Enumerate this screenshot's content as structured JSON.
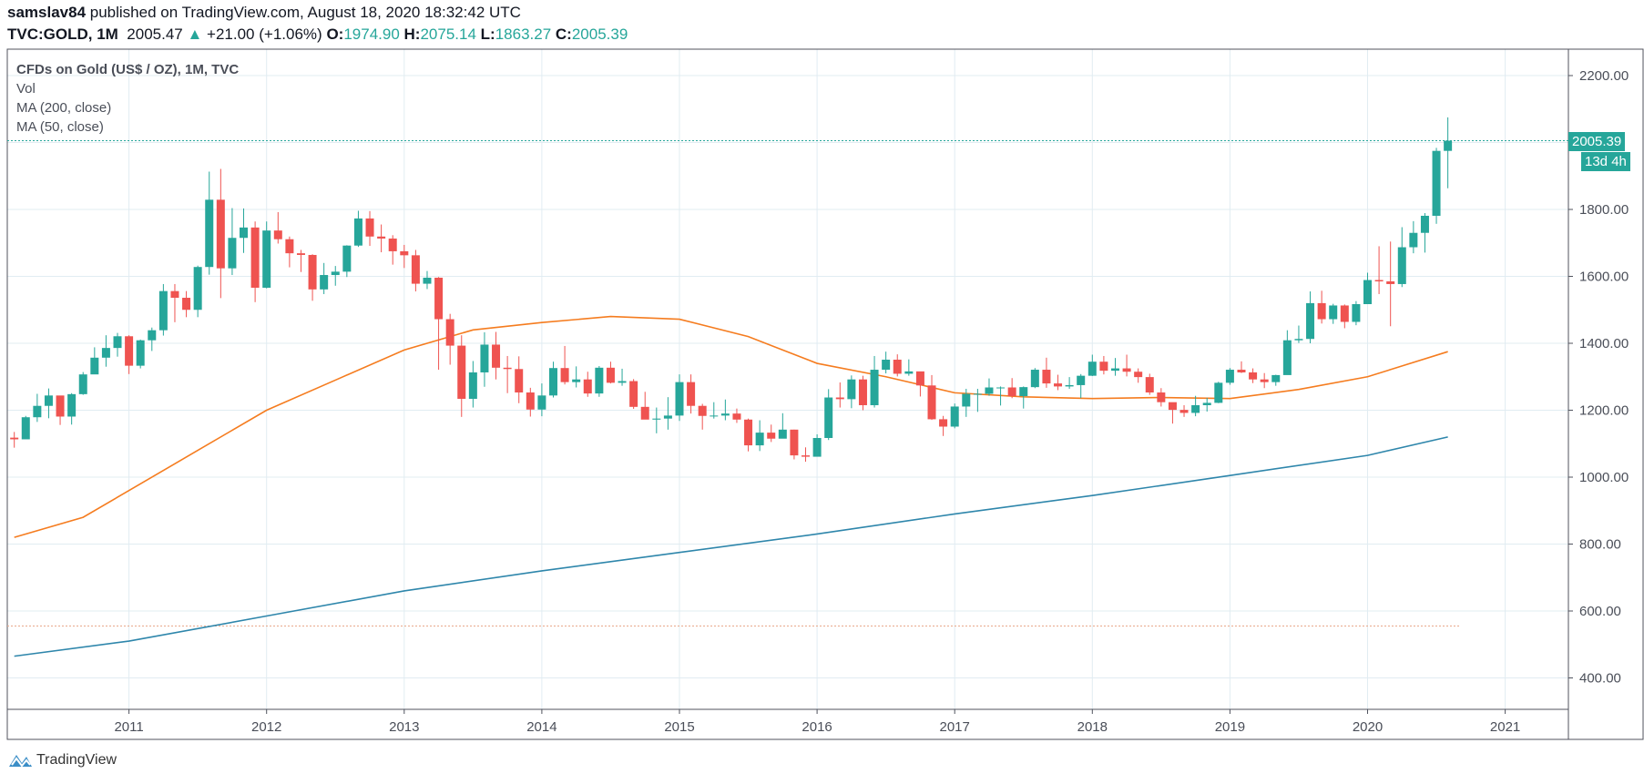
{
  "header": {
    "author": "samslav84",
    "published": "published on TradingView.com, August 18, 2020 18:32:42 UTC",
    "symbol": "TVC:GOLD, 1M",
    "last": "2005.47",
    "change": "+21.00 (+1.06%)",
    "o_label": "O:",
    "o": "1974.90",
    "h_label": "H:",
    "h": "2075.14",
    "l_label": "L:",
    "l": "1863.27",
    "c_label": "C:",
    "c": "2005.39"
  },
  "legend": {
    "title": "CFDs on Gold (US$ / OZ), 1M, TVC",
    "vol": "Vol",
    "ma200": "MA (200, close)",
    "ma50": "MA (50, close)"
  },
  "price_badge": "2005.39",
  "countdown_badge": "13d 4h",
  "logo_text": "TradingView",
  "colors": {
    "up": "#26a69a",
    "down": "#ef5350",
    "ma50": "#f57c1f",
    "ma200": "#2e86ab",
    "grid": "#e1ecf2"
  },
  "chart_data": {
    "type": "candlestick",
    "interval": "1M",
    "start": "2010-03",
    "ylim": [
      300,
      2300
    ],
    "yticks": [
      "400.00",
      "600.00",
      "800.00",
      "1000.00",
      "1200.00",
      "1400.00",
      "1600.00",
      "1800.00",
      "2200.00"
    ],
    "xticks": [
      "2011",
      "2012",
      "2013",
      "2014",
      "2015",
      "2016",
      "2017",
      "2018",
      "2019",
      "2020",
      "2021"
    ],
    "grid": true,
    "first_open": 1118,
    "close": [
      1113,
      1179,
      1213,
      1244,
      1181,
      1248,
      1307,
      1357,
      1386,
      1421,
      1333,
      1409,
      1439,
      1556,
      1536,
      1500,
      1628,
      1829,
      1624,
      1715,
      1746,
      1566,
      1737,
      1711,
      1669,
      1664,
      1561,
      1604,
      1614,
      1692,
      1773,
      1719,
      1713,
      1675,
      1663,
      1578,
      1596,
      1472,
      1393,
      1234,
      1313,
      1396,
      1327,
      1323,
      1253,
      1202,
      1244,
      1326,
      1284,
      1292,
      1250,
      1327,
      1282,
      1287,
      1210,
      1172,
      1175,
      1184,
      1284,
      1213,
      1183,
      1184,
      1190,
      1172,
      1095,
      1133,
      1115,
      1142,
      1065,
      1061,
      1117,
      1238,
      1233,
      1292,
      1215,
      1321,
      1351,
      1309,
      1316,
      1274,
      1173,
      1151,
      1211,
      1249,
      1249,
      1268,
      1268,
      1242,
      1269,
      1321,
      1280,
      1271,
      1275,
      1303,
      1345,
      1318,
      1325,
      1315,
      1299,
      1253,
      1224,
      1201,
      1192,
      1215,
      1222,
      1282,
      1321,
      1313,
      1292,
      1284,
      1305,
      1409,
      1413,
      1520,
      1472,
      1513,
      1464,
      1517,
      1589,
      1585,
      1577,
      1687,
      1730,
      1781,
      1975,
      2005.39
    ],
    "high": [
      1135,
      1183,
      1249,
      1265,
      1213,
      1251,
      1314,
      1388,
      1424,
      1431,
      1424,
      1411,
      1447,
      1577,
      1577,
      1556,
      1632,
      1913,
      1921,
      1804,
      1803,
      1764,
      1764,
      1792,
      1719,
      1679,
      1666,
      1640,
      1631,
      1693,
      1796,
      1795,
      1755,
      1723,
      1694,
      1679,
      1616,
      1598,
      1488,
      1424,
      1347,
      1433,
      1434,
      1362,
      1361,
      1267,
      1280,
      1345,
      1392,
      1331,
      1315,
      1332,
      1345,
      1324,
      1293,
      1255,
      1208,
      1239,
      1307,
      1307,
      1219,
      1224,
      1232,
      1205,
      1175,
      1170,
      1157,
      1191,
      1142,
      1089,
      1128,
      1263,
      1283,
      1304,
      1303,
      1362,
      1375,
      1367,
      1352,
      1310,
      1305,
      1183,
      1220,
      1264,
      1264,
      1295,
      1271,
      1296,
      1271,
      1326,
      1357,
      1306,
      1299,
      1308,
      1366,
      1362,
      1356,
      1366,
      1325,
      1309,
      1266,
      1218,
      1215,
      1243,
      1237,
      1285,
      1326,
      1346,
      1325,
      1311,
      1306,
      1439,
      1453,
      1555,
      1557,
      1518,
      1516,
      1526,
      1611,
      1690,
      1704,
      1747,
      1765,
      1789,
      1984,
      2075.14
    ],
    "low": [
      1088,
      1114,
      1165,
      1176,
      1156,
      1157,
      1246,
      1316,
      1330,
      1360,
      1308,
      1325,
      1377,
      1423,
      1463,
      1478,
      1478,
      1605,
      1535,
      1604,
      1670,
      1523,
      1564,
      1698,
      1627,
      1613,
      1527,
      1547,
      1572,
      1598,
      1688,
      1691,
      1672,
      1635,
      1625,
      1555,
      1562,
      1321,
      1336,
      1180,
      1208,
      1270,
      1292,
      1251,
      1221,
      1181,
      1182,
      1238,
      1277,
      1268,
      1240,
      1240,
      1280,
      1273,
      1204,
      1183,
      1131,
      1142,
      1168,
      1190,
      1142,
      1175,
      1170,
      1162,
      1077,
      1078,
      1105,
      1136,
      1053,
      1046,
      1073,
      1111,
      1208,
      1206,
      1200,
      1208,
      1310,
      1301,
      1303,
      1241,
      1171,
      1123,
      1146,
      1180,
      1195,
      1243,
      1214,
      1236,
      1205,
      1266,
      1267,
      1260,
      1264,
      1236,
      1302,
      1307,
      1303,
      1301,
      1282,
      1246,
      1211,
      1160,
      1180,
      1182,
      1196,
      1221,
      1276,
      1311,
      1281,
      1266,
      1273,
      1311,
      1401,
      1400,
      1459,
      1458,
      1445,
      1454,
      1517,
      1547,
      1451,
      1568,
      1669,
      1671,
      1757,
      1863.27
    ],
    "ma50": [
      [
        "2010-03",
        820
      ],
      [
        "2010-09",
        880
      ],
      [
        "2011-01",
        960
      ],
      [
        "2011-07",
        1080
      ],
      [
        "2012-01",
        1200
      ],
      [
        "2012-07",
        1290
      ],
      [
        "2013-01",
        1380
      ],
      [
        "2013-07",
        1440
      ],
      [
        "2014-01",
        1462
      ],
      [
        "2014-07",
        1480
      ],
      [
        "2015-01",
        1472
      ],
      [
        "2015-07",
        1420
      ],
      [
        "2016-01",
        1340
      ],
      [
        "2016-07",
        1300
      ],
      [
        "2017-01",
        1252
      ],
      [
        "2017-07",
        1240
      ],
      [
        "2018-01",
        1235
      ],
      [
        "2018-07",
        1238
      ],
      [
        "2019-01",
        1235
      ],
      [
        "2019-07",
        1262
      ],
      [
        "2020-01",
        1300
      ],
      [
        "2020-08",
        1375
      ]
    ],
    "ma200": [
      [
        "2010-03",
        465
      ],
      [
        "2011-01",
        510
      ],
      [
        "2012-01",
        585
      ],
      [
        "2013-01",
        660
      ],
      [
        "2014-01",
        720
      ],
      [
        "2015-01",
        775
      ],
      [
        "2016-01",
        830
      ],
      [
        "2017-01",
        890
      ],
      [
        "2018-01",
        945
      ],
      [
        "2019-01",
        1005
      ],
      [
        "2020-01",
        1065
      ],
      [
        "2020-08",
        1120
      ]
    ],
    "vol_line": 555
  }
}
